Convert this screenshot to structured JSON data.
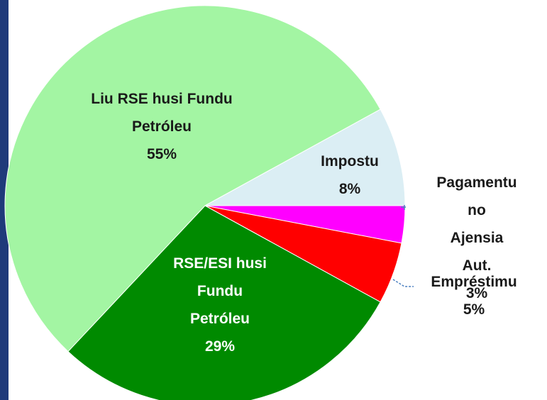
{
  "chart_data": {
    "type": "pie",
    "categories": [
      "Impostu",
      "Liu RSE husi Fundu\nPetróleu",
      "RSE/ESI husi\nFundu\nPetróleu",
      "Empréstimu",
      "Pagamentu no\nAjensia Aut."
    ],
    "values": [
      8,
      55,
      29,
      5,
      3
    ],
    "value_labels": [
      "8%",
      "55%",
      "29%",
      "5%",
      "3%"
    ],
    "colors": [
      "#dbeef4",
      "#a3f5a3",
      "#008a00",
      "#ff0000",
      "#ff00ff"
    ]
  }
}
